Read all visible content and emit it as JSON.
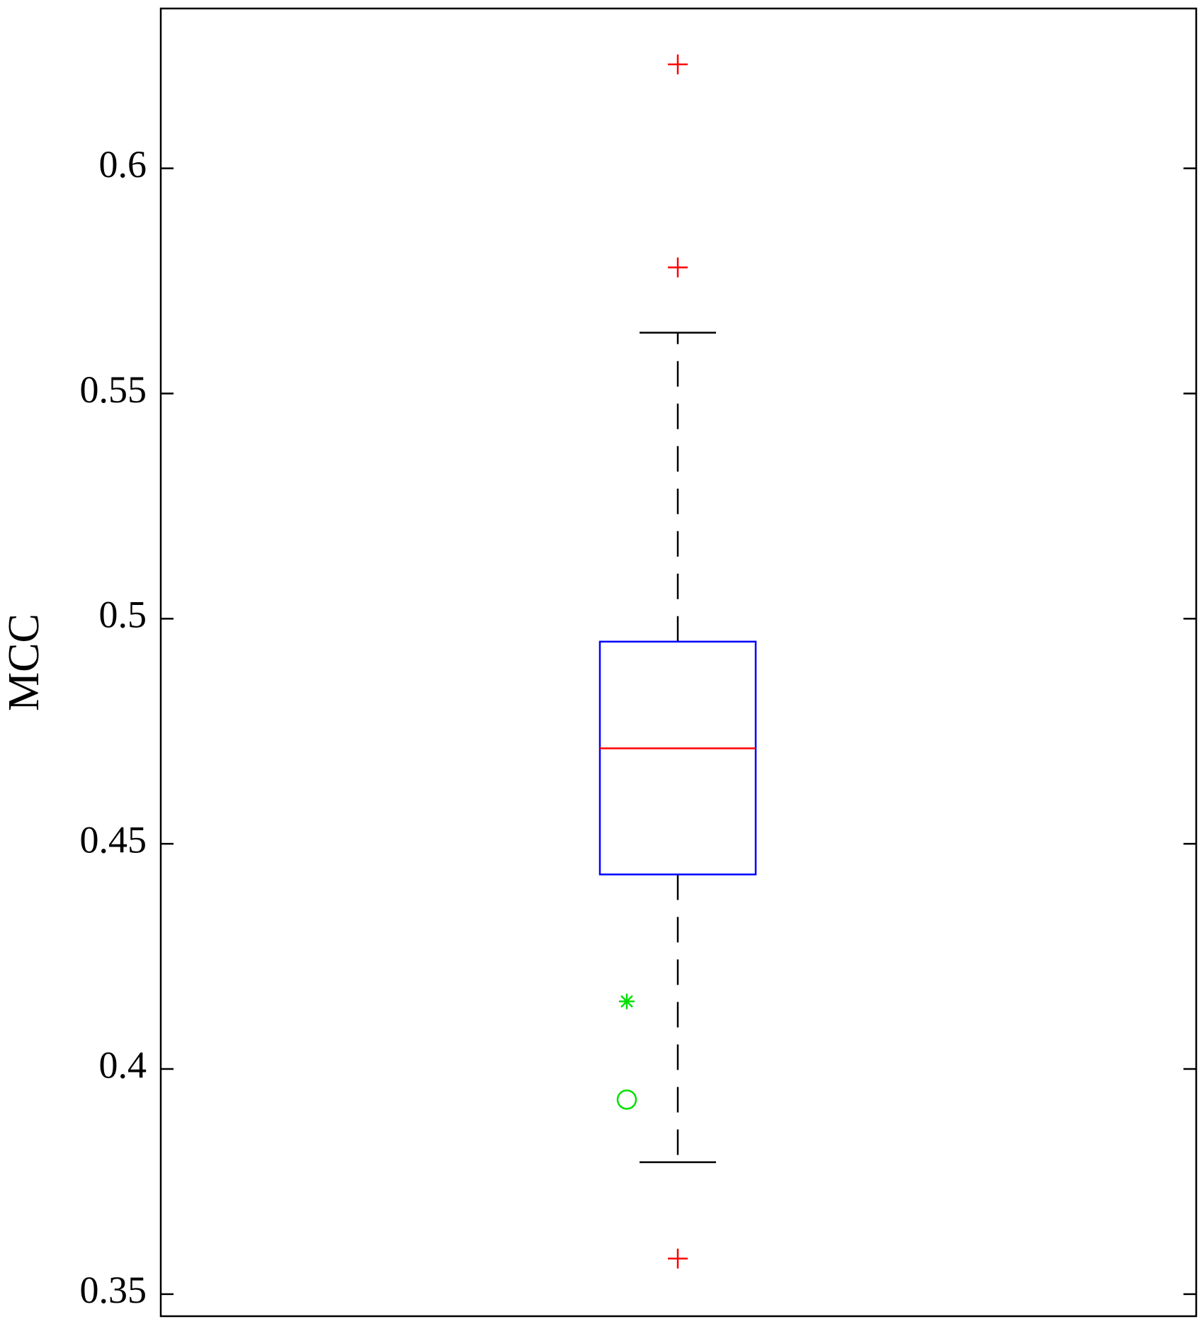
{
  "chart_data": {
    "type": "box",
    "y_label": "MCC",
    "ylim": [
      0.3451,
      0.6355
    ],
    "yticks": [
      0.35,
      0.4,
      0.45,
      0.5,
      0.55,
      0.6
    ],
    "box": {
      "whisker_low": 0.3793,
      "q1": 0.4432,
      "median": 0.4712,
      "q3": 0.4949,
      "whisker_high": 0.5635,
      "outliers": [
        0.6231,
        0.578,
        0.3579
      ],
      "color": "#0000ff",
      "median_color": "#ff0000",
      "whisker_color": "#000000",
      "outlier_color": "#ff0000"
    },
    "markers": [
      {
        "value": 0.415,
        "shape": "star",
        "color": "#00e000"
      },
      {
        "value": 0.3932,
        "shape": "circle",
        "color": "#00e000"
      }
    ]
  }
}
